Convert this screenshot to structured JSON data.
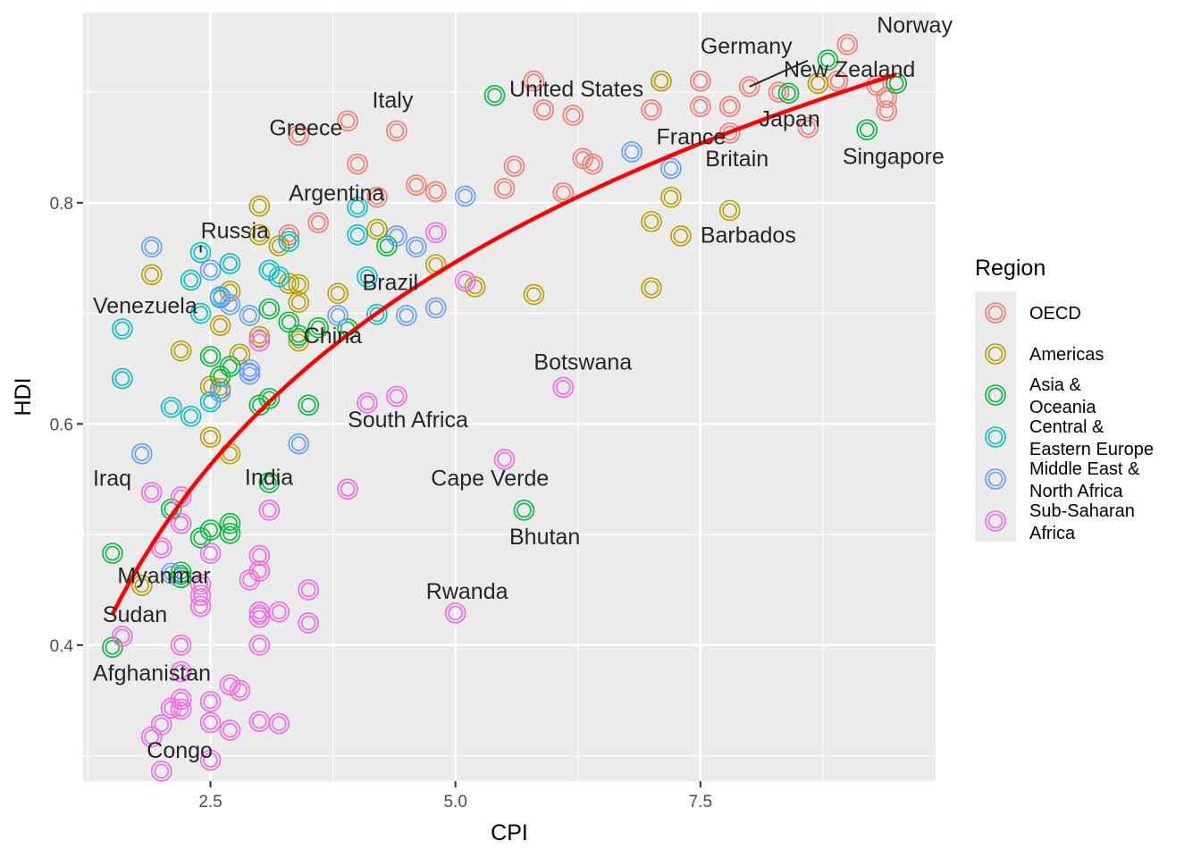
{
  "chart_data": {
    "type": "scatter",
    "title": "",
    "xlabel": "CPI",
    "ylabel": "HDI",
    "xlim": [
      1.2,
      9.9
    ],
    "ylim": [
      0.277,
      0.972
    ],
    "x_ticks": [
      {
        "value": 2.5,
        "label": "2.5"
      },
      {
        "value": 5.0,
        "label": "5.0"
      },
      {
        "value": 7.5,
        "label": "7.5"
      }
    ],
    "y_ticks": [
      {
        "value": 0.4,
        "label": "0.4"
      },
      {
        "value": 0.6,
        "label": "0.6"
      },
      {
        "value": 0.8,
        "label": "0.8"
      }
    ],
    "x_minor": [
      1.25,
      3.75,
      6.25,
      8.75
    ],
    "y_minor": [
      0.3,
      0.5,
      0.7,
      0.9
    ],
    "grid": true,
    "legend": {
      "title": "Region",
      "placement": "right",
      "items": [
        {
          "key": "OECD",
          "lines": [
            "OECD"
          ],
          "color": "#F8766D"
        },
        {
          "key": "Americas",
          "lines": [
            "Americas"
          ],
          "color": "#B79F00"
        },
        {
          "key": "Asia & Oceania",
          "lines": [
            "Asia &",
            "Oceania"
          ],
          "color": "#00BA38"
        },
        {
          "key": "Central & Eastern Europe",
          "lines": [
            "Central &",
            "Eastern Europe"
          ],
          "color": "#00BFC4"
        },
        {
          "key": "Middle East & North Africa",
          "lines": [
            "Middle East &",
            "North Africa"
          ],
          "color": "#619CFF"
        },
        {
          "key": "Sub-Saharan Africa",
          "lines": [
            "Sub-Saharan",
            "Africa"
          ],
          "color": "#F564E3"
        }
      ]
    },
    "trend_line": {
      "color": "#FF0000",
      "x": [
        1.5,
        9.5
      ],
      "y": [
        0.428,
        0.916
      ]
    },
    "labels": [
      {
        "text": "Norway",
        "x": 9.3,
        "y": 0.954,
        "point": [
          9.0,
          0.943
        ]
      },
      {
        "text": "Germany",
        "x": 7.5,
        "y": 0.935,
        "point": [
          8.0,
          0.905
        ],
        "leader": true
      },
      {
        "text": "New Zealand",
        "x": 8.35,
        "y": 0.914,
        "point": [
          9.5,
          0.908
        ]
      },
      {
        "text": "United States",
        "x": 5.55,
        "y": 0.896,
        "point": [
          7.1,
          0.91
        ]
      },
      {
        "text": "Italy",
        "x": 4.15,
        "y": 0.886,
        "point": [
          3.9,
          0.874
        ]
      },
      {
        "text": "Greece",
        "x": 3.1,
        "y": 0.861,
        "point": [
          3.4,
          0.861
        ]
      },
      {
        "text": "Japan",
        "x": 8.1,
        "y": 0.869,
        "point": [
          8.0,
          0.901
        ]
      },
      {
        "text": "France",
        "x": 7.05,
        "y": 0.853,
        "point": [
          7.0,
          0.884
        ]
      },
      {
        "text": "Britain",
        "x": 7.55,
        "y": 0.833,
        "point": [
          7.8,
          0.863
        ]
      },
      {
        "text": "Singapore",
        "x": 8.95,
        "y": 0.835,
        "point": [
          9.2,
          0.866
        ]
      },
      {
        "text": "Argentina",
        "x": 3.3,
        "y": 0.802,
        "point": [
          3.0,
          0.797
        ]
      },
      {
        "text": "Russia",
        "x": 2.4,
        "y": 0.768,
        "point": [
          2.4,
          0.755
        ],
        "leader": true
      },
      {
        "text": "Barbados",
        "x": 7.5,
        "y": 0.764,
        "point": [
          7.8,
          0.793
        ]
      },
      {
        "text": "Brazil",
        "x": 4.05,
        "y": 0.721,
        "point": [
          3.8,
          0.718
        ]
      },
      {
        "text": "Venezuela",
        "x": 1.3,
        "y": 0.7,
        "point": [
          1.9,
          0.735
        ]
      },
      {
        "text": "China",
        "x": 3.45,
        "y": 0.673,
        "point": [
          3.6,
          0.687
        ]
      },
      {
        "text": "Botswana",
        "x": 5.8,
        "y": 0.649,
        "point": [
          6.1,
          0.633
        ]
      },
      {
        "text": "South Africa",
        "x": 3.9,
        "y": 0.597,
        "point": [
          4.1,
          0.619
        ]
      },
      {
        "text": "India",
        "x": 2.85,
        "y": 0.545,
        "point": [
          3.1,
          0.547
        ]
      },
      {
        "text": "Iraq",
        "x": 1.3,
        "y": 0.544,
        "point": [
          1.8,
          0.573
        ]
      },
      {
        "text": "Cape Verde",
        "x": 4.75,
        "y": 0.544,
        "point": [
          5.5,
          0.568
        ]
      },
      {
        "text": "Bhutan",
        "x": 5.55,
        "y": 0.491,
        "point": [
          5.7,
          0.522
        ]
      },
      {
        "text": "Myanmar",
        "x": 1.55,
        "y": 0.456,
        "point": [
          1.5,
          0.483
        ]
      },
      {
        "text": "Rwanda",
        "x": 4.7,
        "y": 0.442,
        "point": [
          5.0,
          0.429
        ]
      },
      {
        "text": "Sudan",
        "x": 1.4,
        "y": 0.421,
        "point": [
          1.6,
          0.408
        ]
      },
      {
        "text": "Afghanistan",
        "x": 1.3,
        "y": 0.368,
        "point": [
          1.5,
          0.398
        ]
      },
      {
        "text": "Congo",
        "x": 1.85,
        "y": 0.298,
        "point": [
          2.0,
          0.286
        ]
      }
    ],
    "series": [
      {
        "name": "OECD",
        "color": "#F8766D",
        "points": [
          [
            9.0,
            0.943
          ],
          [
            8.0,
            0.905
          ],
          [
            9.5,
            0.908
          ],
          [
            7.5,
            0.91
          ],
          [
            7.1,
            0.91
          ],
          [
            5.8,
            0.91
          ],
          [
            7.8,
            0.887
          ],
          [
            5.9,
            0.884
          ],
          [
            8.9,
            0.91
          ],
          [
            9.3,
            0.906
          ],
          [
            8.7,
            0.908
          ],
          [
            9.4,
            0.895
          ],
          [
            9.4,
            0.883
          ],
          [
            8.6,
            0.868
          ],
          [
            8.3,
            0.9
          ],
          [
            7.5,
            0.887
          ],
          [
            7.0,
            0.884
          ],
          [
            7.8,
            0.863
          ],
          [
            6.2,
            0.879
          ],
          [
            3.9,
            0.874
          ],
          [
            4.4,
            0.865
          ],
          [
            3.4,
            0.861
          ],
          [
            6.3,
            0.84
          ],
          [
            6.4,
            0.835
          ],
          [
            5.6,
            0.833
          ],
          [
            4.0,
            0.835
          ],
          [
            4.6,
            0.816
          ],
          [
            4.8,
            0.81
          ],
          [
            5.5,
            0.813
          ],
          [
            6.1,
            0.809
          ],
          [
            4.2,
            0.805
          ],
          [
            3.6,
            0.782
          ],
          [
            3.3,
            0.771
          ]
        ]
      },
      {
        "name": "Americas",
        "color": "#B79F00",
        "points": [
          [
            8.7,
            0.908
          ],
          [
            7.1,
            0.91
          ],
          [
            7.2,
            0.805
          ],
          [
            7.8,
            0.793
          ],
          [
            7.0,
            0.783
          ],
          [
            7.3,
            0.77
          ],
          [
            7.0,
            0.723
          ],
          [
            5.8,
            0.717
          ],
          [
            5.2,
            0.724
          ],
          [
            3.0,
            0.797
          ],
          [
            3.0,
            0.771
          ],
          [
            3.2,
            0.761
          ],
          [
            4.2,
            0.776
          ],
          [
            4.8,
            0.744
          ],
          [
            3.4,
            0.726
          ],
          [
            3.3,
            0.727
          ],
          [
            3.4,
            0.71
          ],
          [
            3.8,
            0.718
          ],
          [
            2.7,
            0.72
          ],
          [
            1.9,
            0.735
          ],
          [
            2.6,
            0.689
          ],
          [
            2.8,
            0.663
          ],
          [
            2.2,
            0.666
          ],
          [
            3.0,
            0.679
          ],
          [
            3.4,
            0.675
          ],
          [
            2.5,
            0.634
          ],
          [
            2.6,
            0.632
          ],
          [
            2.5,
            0.588
          ],
          [
            2.7,
            0.573
          ],
          [
            1.8,
            0.454
          ]
        ]
      },
      {
        "name": "Asia & Oceania",
        "color": "#00BA38",
        "points": [
          [
            8.8,
            0.929
          ],
          [
            9.5,
            0.908
          ],
          [
            8.4,
            0.899
          ],
          [
            5.4,
            0.897
          ],
          [
            9.2,
            0.866
          ],
          [
            4.3,
            0.761
          ],
          [
            3.1,
            0.704
          ],
          [
            3.3,
            0.692
          ],
          [
            3.6,
            0.687
          ],
          [
            3.9,
            0.686
          ],
          [
            3.4,
            0.68
          ],
          [
            2.5,
            0.661
          ],
          [
            2.6,
            0.643
          ],
          [
            2.7,
            0.652
          ],
          [
            3.5,
            0.617
          ],
          [
            3.1,
            0.623
          ],
          [
            3.0,
            0.617
          ],
          [
            3.1,
            0.547
          ],
          [
            5.7,
            0.522
          ],
          [
            2.1,
            0.523
          ],
          [
            2.7,
            0.51
          ],
          [
            2.7,
            0.501
          ],
          [
            2.5,
            0.504
          ],
          [
            2.4,
            0.497
          ],
          [
            1.5,
            0.483
          ],
          [
            2.2,
            0.466
          ],
          [
            2.2,
            0.461
          ],
          [
            1.5,
            0.398
          ]
        ]
      },
      {
        "name": "Central & Eastern Europe",
        "color": "#00BFC4",
        "points": [
          [
            4.0,
            0.796
          ],
          [
            4.0,
            0.771
          ],
          [
            3.3,
            0.765
          ],
          [
            2.4,
            0.755
          ],
          [
            2.7,
            0.745
          ],
          [
            3.1,
            0.739
          ],
          [
            4.1,
            0.733
          ],
          [
            3.2,
            0.733
          ],
          [
            2.3,
            0.73
          ],
          [
            2.6,
            0.715
          ],
          [
            2.4,
            0.7
          ],
          [
            4.2,
            0.699
          ],
          [
            1.6,
            0.686
          ],
          [
            1.6,
            0.641
          ],
          [
            2.1,
            0.615
          ],
          [
            2.3,
            0.607
          ],
          [
            2.5,
            0.62
          ]
        ]
      },
      {
        "name": "Middle East & North Africa",
        "color": "#619CFF",
        "points": [
          [
            6.8,
            0.846
          ],
          [
            7.2,
            0.831
          ],
          [
            5.1,
            0.806
          ],
          [
            4.4,
            0.77
          ],
          [
            4.6,
            0.76
          ],
          [
            2.5,
            0.739
          ],
          [
            2.6,
            0.714
          ],
          [
            2.7,
            0.708
          ],
          [
            2.9,
            0.698
          ],
          [
            4.5,
            0.698
          ],
          [
            3.8,
            0.698
          ],
          [
            4.8,
            0.705
          ],
          [
            2.9,
            0.649
          ],
          [
            2.9,
            0.645
          ],
          [
            2.6,
            0.629
          ],
          [
            3.4,
            0.582
          ],
          [
            1.8,
            0.573
          ],
          [
            2.1,
            0.465
          ],
          [
            1.9,
            0.76
          ]
        ]
      },
      {
        "name": "Sub-Saharan Africa",
        "color": "#F564E3",
        "points": [
          [
            4.8,
            0.773
          ],
          [
            5.1,
            0.729
          ],
          [
            3.0,
            0.675
          ],
          [
            6.1,
            0.633
          ],
          [
            4.1,
            0.619
          ],
          [
            4.4,
            0.625
          ],
          [
            5.5,
            0.568
          ],
          [
            3.9,
            0.541
          ],
          [
            1.9,
            0.538
          ],
          [
            2.2,
            0.534
          ],
          [
            3.1,
            0.522
          ],
          [
            2.2,
            0.51
          ],
          [
            2.0,
            0.488
          ],
          [
            2.5,
            0.483
          ],
          [
            3.0,
            0.481
          ],
          [
            3.0,
            0.467
          ],
          [
            2.9,
            0.459
          ],
          [
            2.4,
            0.455
          ],
          [
            3.5,
            0.45
          ],
          [
            2.4,
            0.445
          ],
          [
            2.4,
            0.435
          ],
          [
            3.2,
            0.43
          ],
          [
            3.0,
            0.43
          ],
          [
            3.0,
            0.425
          ],
          [
            3.5,
            0.42
          ],
          [
            5.0,
            0.429
          ],
          [
            1.6,
            0.408
          ],
          [
            2.2,
            0.4
          ],
          [
            3.0,
            0.4
          ],
          [
            2.2,
            0.376
          ],
          [
            2.7,
            0.364
          ],
          [
            2.8,
            0.359
          ],
          [
            2.2,
            0.351
          ],
          [
            2.5,
            0.349
          ],
          [
            2.1,
            0.343
          ],
          [
            2.2,
            0.342
          ],
          [
            2.5,
            0.33
          ],
          [
            2.0,
            0.328
          ],
          [
            3.0,
            0.331
          ],
          [
            3.2,
            0.329
          ],
          [
            2.7,
            0.323
          ],
          [
            1.9,
            0.317
          ],
          [
            2.5,
            0.296
          ],
          [
            2.0,
            0.286
          ]
        ]
      }
    ]
  }
}
